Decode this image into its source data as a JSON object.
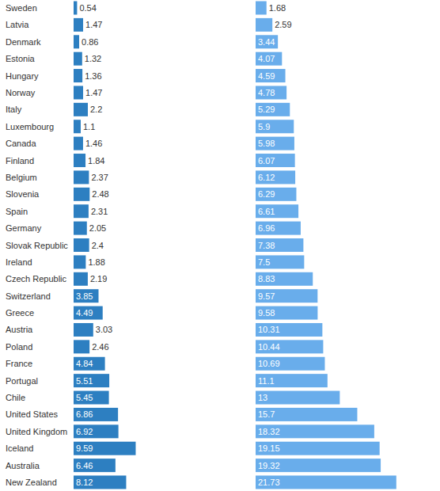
{
  "chart_data": {
    "type": "bar",
    "orientation": "horizontal",
    "data_labels": true,
    "tick_labels": "y",
    "grid": false,
    "categories": [
      "Sweden",
      "Latvia",
      "Denmark",
      "Estonia",
      "Hungary",
      "Norway",
      "Italy",
      "Luxembourg",
      "Canada",
      "Finland",
      "Belgium",
      "Slovenia",
      "Spain",
      "Germany",
      "Slovak Republic",
      "Ireland",
      "Czech Republic",
      "Switzerland",
      "Greece",
      "Austria",
      "Poland",
      "France",
      "Portugal",
      "Chile",
      "United States",
      "United Kingdom",
      "Iceland",
      "Australia",
      "New Zealand"
    ],
    "xlim": [
      0,
      22
    ],
    "series": [
      {
        "color": "#2d7fc1",
        "values": [
          0.54,
          1.47,
          0.86,
          1.32,
          1.36,
          1.47,
          2.2,
          1.1,
          1.46,
          1.84,
          2.37,
          2.48,
          2.31,
          2.05,
          2.4,
          1.88,
          2.19,
          3.85,
          4.49,
          3.03,
          2.46,
          4.84,
          5.51,
          5.45,
          6.86,
          6.92,
          9.59,
          6.46,
          8.12
        ]
      },
      {
        "color": "#69adeb",
        "values": [
          1.68,
          2.59,
          3.44,
          4.07,
          4.59,
          4.78,
          5.29,
          5.9,
          5.98,
          6.07,
          6.12,
          6.29,
          6.61,
          6.96,
          7.38,
          7.5,
          8.83,
          9.57,
          9.58,
          10.31,
          10.44,
          10.69,
          11.1,
          13,
          15.7,
          18.32,
          19.15,
          19.32,
          21.73
        ]
      }
    ]
  }
}
